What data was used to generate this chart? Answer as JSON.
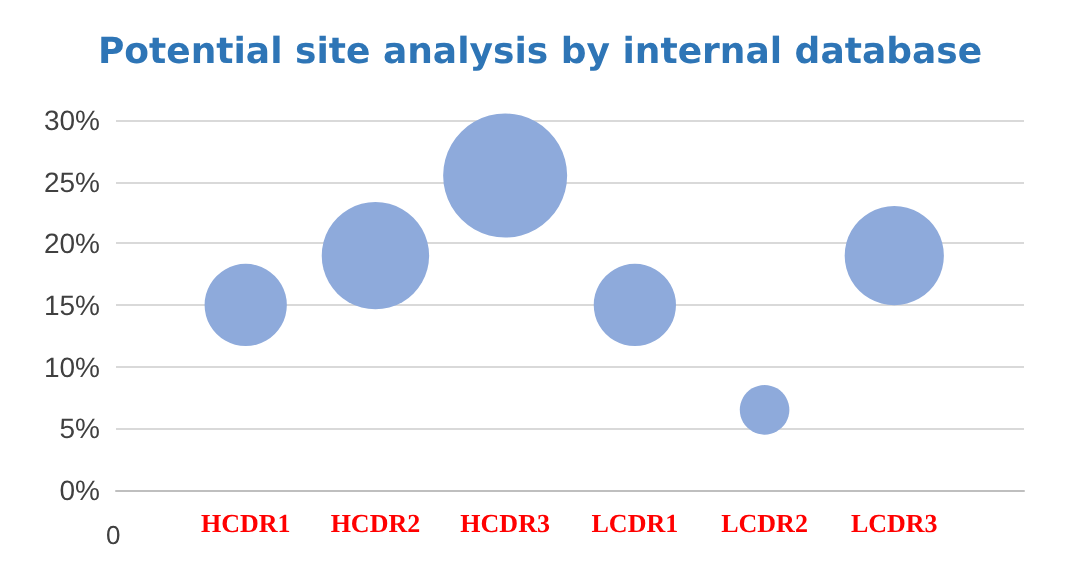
{
  "chart_data": {
    "type": "bubble",
    "title": "Potential site analysis by internal database",
    "categories": [
      "HCDR1",
      "HCDR2",
      "HCDR3",
      "LCDR1",
      "LCDR2",
      "LCDR3"
    ],
    "values": [
      15,
      19,
      25.5,
      15,
      6.5,
      19
    ],
    "sizes": [
      0.44,
      0.75,
      1,
      0.44,
      0.16,
      0.64
    ],
    "color": "#8eaadb",
    "annotations": [
      "0"
    ],
    "ylim": [
      0,
      30
    ],
    "yticks": [
      {
        "value": 0,
        "label": "0%"
      },
      {
        "value": 5,
        "label": "5%"
      },
      {
        "value": 10,
        "label": "10%"
      },
      {
        "value": 15,
        "label": "15%"
      },
      {
        "value": 20,
        "label": "20%"
      },
      {
        "value": 25,
        "label": "25%"
      },
      {
        "value": 30,
        "label": "30%"
      }
    ],
    "grid": "y"
  }
}
